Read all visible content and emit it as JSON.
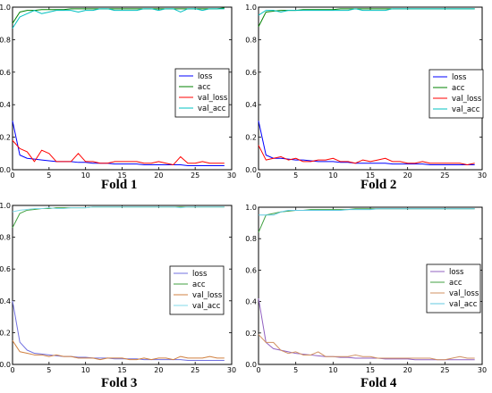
{
  "figure": {
    "captions": [
      "Fold 1",
      "Fold 2",
      "Fold 3",
      "Fold 4"
    ]
  },
  "chart_data": [
    {
      "type": "line",
      "title": "Fold 1",
      "xlim": [
        0,
        30
      ],
      "ylim": [
        0,
        1.0
      ],
      "xticks": [
        0,
        5,
        10,
        15,
        20,
        25,
        30
      ],
      "yticks": [
        0,
        0.2,
        0.4,
        0.6,
        0.8,
        1.0
      ],
      "legend_position": "center-right",
      "x": [
        0,
        1,
        2,
        3,
        4,
        5,
        6,
        7,
        8,
        9,
        10,
        11,
        12,
        13,
        14,
        15,
        16,
        17,
        18,
        19,
        20,
        21,
        22,
        23,
        24,
        25,
        26,
        27,
        28,
        29
      ],
      "series": [
        {
          "name": "loss",
          "color": "#0000ff",
          "values": [
            0.3,
            0.09,
            0.07,
            0.065,
            0.06,
            0.055,
            0.05,
            0.05,
            0.05,
            0.045,
            0.045,
            0.04,
            0.04,
            0.04,
            0.035,
            0.035,
            0.035,
            0.035,
            0.03,
            0.03,
            0.03,
            0.03,
            0.03,
            0.03,
            0.025,
            0.025,
            0.025,
            0.025,
            0.025,
            0.025
          ]
        },
        {
          "name": "acc",
          "color": "#008000",
          "values": [
            0.9,
            0.97,
            0.98,
            0.98,
            0.985,
            0.985,
            0.985,
            0.985,
            0.99,
            0.99,
            0.99,
            0.99,
            0.99,
            0.99,
            0.99,
            0.99,
            0.99,
            0.99,
            0.99,
            0.99,
            0.99,
            0.99,
            0.99,
            0.99,
            0.99,
            0.99,
            0.99,
            0.99,
            0.99,
            0.995
          ]
        },
        {
          "name": "val_loss",
          "color": "#ff0000",
          "values": [
            0.18,
            0.13,
            0.11,
            0.05,
            0.12,
            0.1,
            0.05,
            0.05,
            0.05,
            0.1,
            0.05,
            0.05,
            0.04,
            0.04,
            0.05,
            0.05,
            0.05,
            0.05,
            0.04,
            0.04,
            0.05,
            0.04,
            0.03,
            0.08,
            0.04,
            0.04,
            0.05,
            0.04,
            0.04,
            0.04
          ]
        },
        {
          "name": "val_acc",
          "color": "#00c0c0",
          "values": [
            0.87,
            0.94,
            0.96,
            0.98,
            0.96,
            0.97,
            0.98,
            0.98,
            0.98,
            0.97,
            0.98,
            0.98,
            0.99,
            0.99,
            0.98,
            0.98,
            0.98,
            0.98,
            0.99,
            0.99,
            0.98,
            0.99,
            0.99,
            0.97,
            0.99,
            0.99,
            0.98,
            0.99,
            0.99,
            0.99
          ]
        }
      ]
    },
    {
      "type": "line",
      "title": "Fold 2",
      "xlim": [
        0,
        30
      ],
      "ylim": [
        0,
        1.0
      ],
      "xticks": [
        0,
        5,
        10,
        15,
        20,
        25,
        30
      ],
      "yticks": [
        0,
        0.2,
        0.4,
        0.6,
        0.8,
        1.0
      ],
      "legend_position": "center-right",
      "x": [
        0,
        1,
        2,
        3,
        4,
        5,
        6,
        7,
        8,
        9,
        10,
        11,
        12,
        13,
        14,
        15,
        16,
        17,
        18,
        19,
        20,
        21,
        22,
        23,
        24,
        25,
        26,
        27,
        28,
        29
      ],
      "series": [
        {
          "name": "loss",
          "color": "#0000ff",
          "values": [
            0.3,
            0.09,
            0.07,
            0.07,
            0.065,
            0.06,
            0.06,
            0.055,
            0.05,
            0.05,
            0.05,
            0.045,
            0.045,
            0.04,
            0.04,
            0.04,
            0.04,
            0.04,
            0.035,
            0.035,
            0.035,
            0.035,
            0.035,
            0.03,
            0.03,
            0.03,
            0.03,
            0.03,
            0.03,
            0.03
          ]
        },
        {
          "name": "acc",
          "color": "#008000",
          "values": [
            0.88,
            0.97,
            0.975,
            0.98,
            0.98,
            0.98,
            0.985,
            0.985,
            0.985,
            0.985,
            0.985,
            0.99,
            0.99,
            0.99,
            0.99,
            0.99,
            0.99,
            0.99,
            0.99,
            0.99,
            0.99,
            0.99,
            0.99,
            0.99,
            0.99,
            0.99,
            0.99,
            0.99,
            0.99,
            0.99
          ]
        },
        {
          "name": "val_loss",
          "color": "#ff0000",
          "values": [
            0.15,
            0.06,
            0.07,
            0.08,
            0.06,
            0.07,
            0.05,
            0.05,
            0.06,
            0.06,
            0.07,
            0.05,
            0.05,
            0.04,
            0.06,
            0.05,
            0.06,
            0.07,
            0.05,
            0.05,
            0.04,
            0.04,
            0.05,
            0.04,
            0.04,
            0.04,
            0.04,
            0.04,
            0.03,
            0.04
          ]
        },
        {
          "name": "val_acc",
          "color": "#00c0c0",
          "values": [
            0.95,
            0.98,
            0.98,
            0.97,
            0.98,
            0.98,
            0.98,
            0.98,
            0.98,
            0.98,
            0.98,
            0.98,
            0.98,
            0.99,
            0.98,
            0.98,
            0.98,
            0.98,
            0.99,
            0.99,
            0.99,
            0.99,
            0.99,
            0.99,
            0.99,
            0.99,
            0.99,
            0.99,
            0.99,
            0.99
          ]
        }
      ]
    },
    {
      "type": "line",
      "title": "Fold 3",
      "xlim": [
        0,
        30
      ],
      "ylim": [
        0,
        1.0
      ],
      "xticks": [
        0,
        5,
        10,
        15,
        20,
        25,
        30
      ],
      "yticks": [
        0,
        0.2,
        0.4,
        0.6,
        0.8,
        1.0
      ],
      "legend_position": "center-right",
      "x": [
        0,
        1,
        2,
        3,
        4,
        5,
        6,
        7,
        8,
        9,
        10,
        11,
        12,
        13,
        14,
        15,
        16,
        17,
        18,
        19,
        20,
        21,
        22,
        23,
        24,
        25,
        26,
        27,
        28,
        29
      ],
      "series": [
        {
          "name": "loss",
          "color": "#7070e0",
          "values": [
            0.4,
            0.14,
            0.09,
            0.07,
            0.065,
            0.06,
            0.055,
            0.05,
            0.05,
            0.045,
            0.045,
            0.04,
            0.04,
            0.04,
            0.035,
            0.035,
            0.035,
            0.035,
            0.03,
            0.03,
            0.03,
            0.03,
            0.03,
            0.03,
            0.025,
            0.025,
            0.025,
            0.025,
            0.025,
            0.025
          ]
        },
        {
          "name": "acc",
          "color": "#40a040",
          "values": [
            0.86,
            0.95,
            0.97,
            0.975,
            0.98,
            0.98,
            0.985,
            0.985,
            0.985,
            0.985,
            0.985,
            0.99,
            0.99,
            0.99,
            0.99,
            0.99,
            0.99,
            0.99,
            0.99,
            0.99,
            0.99,
            0.99,
            0.99,
            0.99,
            0.99,
            0.99,
            0.99,
            0.99,
            0.99,
            0.99
          ]
        },
        {
          "name": "val_loss",
          "color": "#d08040",
          "values": [
            0.15,
            0.08,
            0.07,
            0.06,
            0.06,
            0.05,
            0.06,
            0.05,
            0.05,
            0.04,
            0.04,
            0.04,
            0.03,
            0.04,
            0.04,
            0.04,
            0.03,
            0.03,
            0.04,
            0.03,
            0.04,
            0.04,
            0.03,
            0.05,
            0.04,
            0.04,
            0.04,
            0.05,
            0.04,
            0.04
          ]
        },
        {
          "name": "val_acc",
          "color": "#80d8e8",
          "values": [
            0.96,
            0.97,
            0.975,
            0.98,
            0.98,
            0.985,
            0.98,
            0.98,
            0.985,
            0.985,
            0.985,
            0.99,
            0.99,
            0.99,
            0.99,
            0.99,
            0.99,
            0.99,
            0.99,
            0.99,
            0.99,
            0.99,
            0.99,
            0.985,
            0.99,
            0.99,
            0.99,
            0.99,
            0.99,
            0.99
          ]
        }
      ]
    },
    {
      "type": "line",
      "title": "Fold 4",
      "xlim": [
        0,
        30
      ],
      "ylim": [
        0,
        1.0
      ],
      "xticks": [
        0,
        5,
        10,
        15,
        20,
        25,
        30
      ],
      "yticks": [
        0,
        0.2,
        0.4,
        0.6,
        0.8,
        1.0
      ],
      "legend_position": "center-right",
      "x": [
        0,
        1,
        2,
        3,
        4,
        5,
        6,
        7,
        8,
        9,
        10,
        11,
        12,
        13,
        14,
        15,
        16,
        17,
        18,
        19,
        20,
        21,
        22,
        23,
        24,
        25,
        26,
        27,
        28,
        29
      ],
      "series": [
        {
          "name": "loss",
          "color": "#9060c0",
          "values": [
            0.42,
            0.14,
            0.1,
            0.09,
            0.08,
            0.07,
            0.065,
            0.06,
            0.055,
            0.05,
            0.05,
            0.045,
            0.045,
            0.04,
            0.04,
            0.04,
            0.04,
            0.035,
            0.035,
            0.035,
            0.035,
            0.03,
            0.03,
            0.03,
            0.03,
            0.03,
            0.03,
            0.03,
            0.03,
            0.03
          ]
        },
        {
          "name": "acc",
          "color": "#40a040",
          "values": [
            0.84,
            0.95,
            0.96,
            0.97,
            0.975,
            0.98,
            0.98,
            0.985,
            0.985,
            0.985,
            0.985,
            0.985,
            0.985,
            0.99,
            0.99,
            0.99,
            0.99,
            0.99,
            0.99,
            0.99,
            0.99,
            0.99,
            0.99,
            0.99,
            0.99,
            0.99,
            0.99,
            0.99,
            0.99,
            0.99
          ]
        },
        {
          "name": "val_loss",
          "color": "#d09060",
          "values": [
            0.19,
            0.14,
            0.14,
            0.09,
            0.07,
            0.08,
            0.06,
            0.06,
            0.08,
            0.05,
            0.05,
            0.05,
            0.05,
            0.06,
            0.05,
            0.05,
            0.04,
            0.04,
            0.04,
            0.04,
            0.04,
            0.04,
            0.04,
            0.04,
            0.03,
            0.03,
            0.04,
            0.05,
            0.04,
            0.04
          ]
        },
        {
          "name": "val_acc",
          "color": "#60c8e0",
          "values": [
            0.95,
            0.95,
            0.95,
            0.97,
            0.98,
            0.98,
            0.98,
            0.98,
            0.98,
            0.98,
            0.98,
            0.98,
            0.985,
            0.985,
            0.985,
            0.985,
            0.99,
            0.99,
            0.99,
            0.99,
            0.99,
            0.99,
            0.99,
            0.99,
            0.99,
            0.99,
            0.99,
            0.99,
            0.99,
            0.99
          ]
        }
      ]
    }
  ]
}
